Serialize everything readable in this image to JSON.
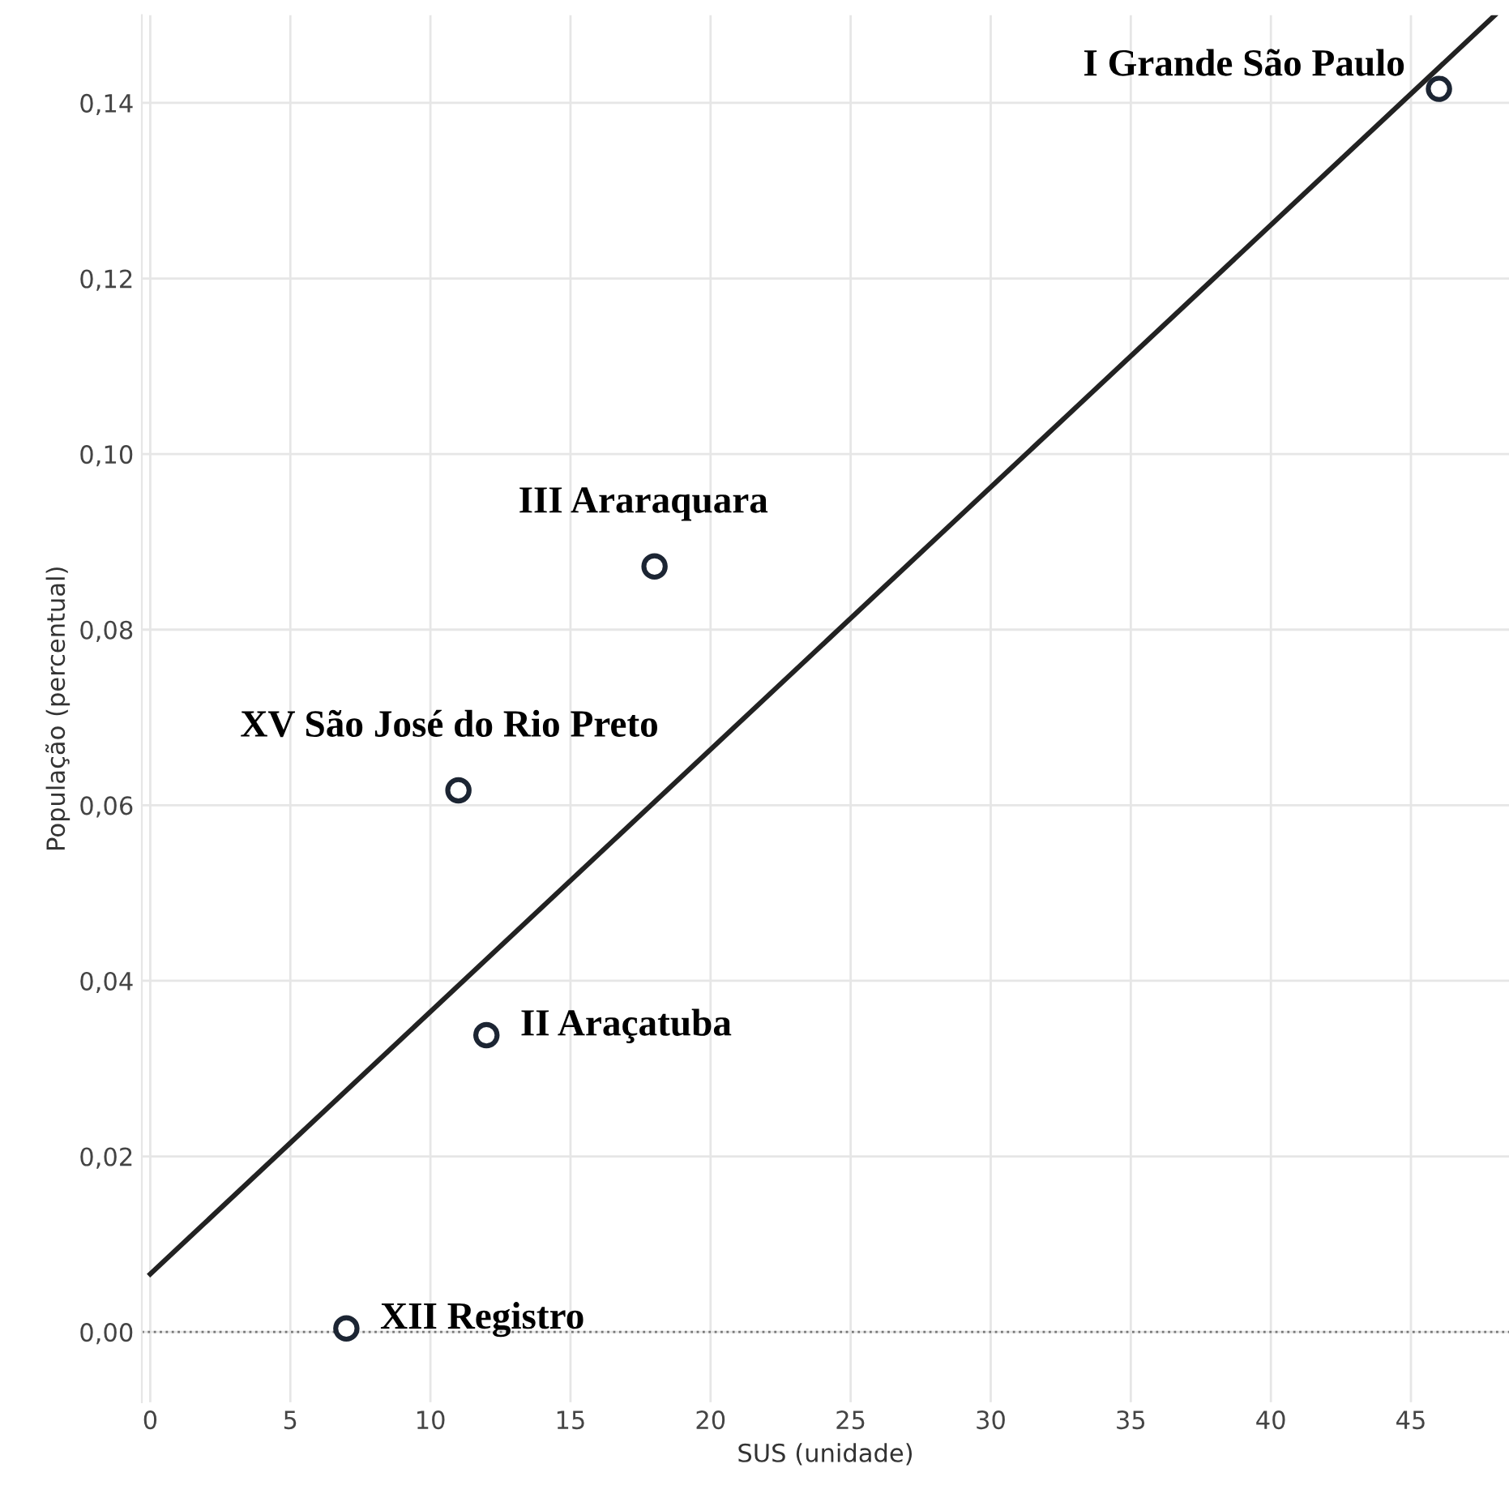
{
  "chart_data": {
    "type": "scatter",
    "xlabel": "SUS (unidade)",
    "ylabel": "População (percentual)",
    "xlim": [
      -0.3,
      48.5
    ],
    "ylim": [
      -0.008,
      0.15
    ],
    "xticks": [
      0,
      5,
      10,
      15,
      20,
      25,
      30,
      35,
      40,
      45
    ],
    "yticks": [
      {
        "value": 0,
        "label": "0,00"
      },
      {
        "value": 0.02,
        "label": "0,02"
      },
      {
        "value": 0.04,
        "label": "0,04"
      },
      {
        "value": 0.06,
        "label": "0,06"
      },
      {
        "value": 0.08,
        "label": "0,08"
      },
      {
        "value": 0.1,
        "label": "0,10"
      },
      {
        "value": 0.12,
        "label": "0,12"
      },
      {
        "value": 0.14,
        "label": "0,14"
      }
    ],
    "grid": true,
    "marker": "circle",
    "series": [
      {
        "color": "#1c2533",
        "x": [
          7,
          12,
          11,
          18,
          46
        ],
        "values": [
          0.0004,
          0.0338,
          0.0617,
          0.0872,
          0.1416
        ]
      },
      {
        "type": "line",
        "marker": "none",
        "color": "#222222",
        "x": [
          0,
          48
        ],
        "values": [
          0.0066,
          0.15
        ]
      }
    ],
    "ref_lines": [
      {
        "axis": "y",
        "value": 0,
        "color": "#777777",
        "line_style": "dotted"
      }
    ],
    "annotations": [
      {
        "text": "XII Registro",
        "x": 7,
        "y": 0.0004
      },
      {
        "text": "II Araçatuba",
        "x": 12,
        "y": 0.0338
      },
      {
        "text": "XV São José do Rio Preto",
        "x": 11,
        "y": 0.0617
      },
      {
        "text": "III Araraquara",
        "x": 18,
        "y": 0.0872
      },
      {
        "text": "I Grande São Paulo",
        "x": 46,
        "y": 0.1416
      }
    ]
  }
}
